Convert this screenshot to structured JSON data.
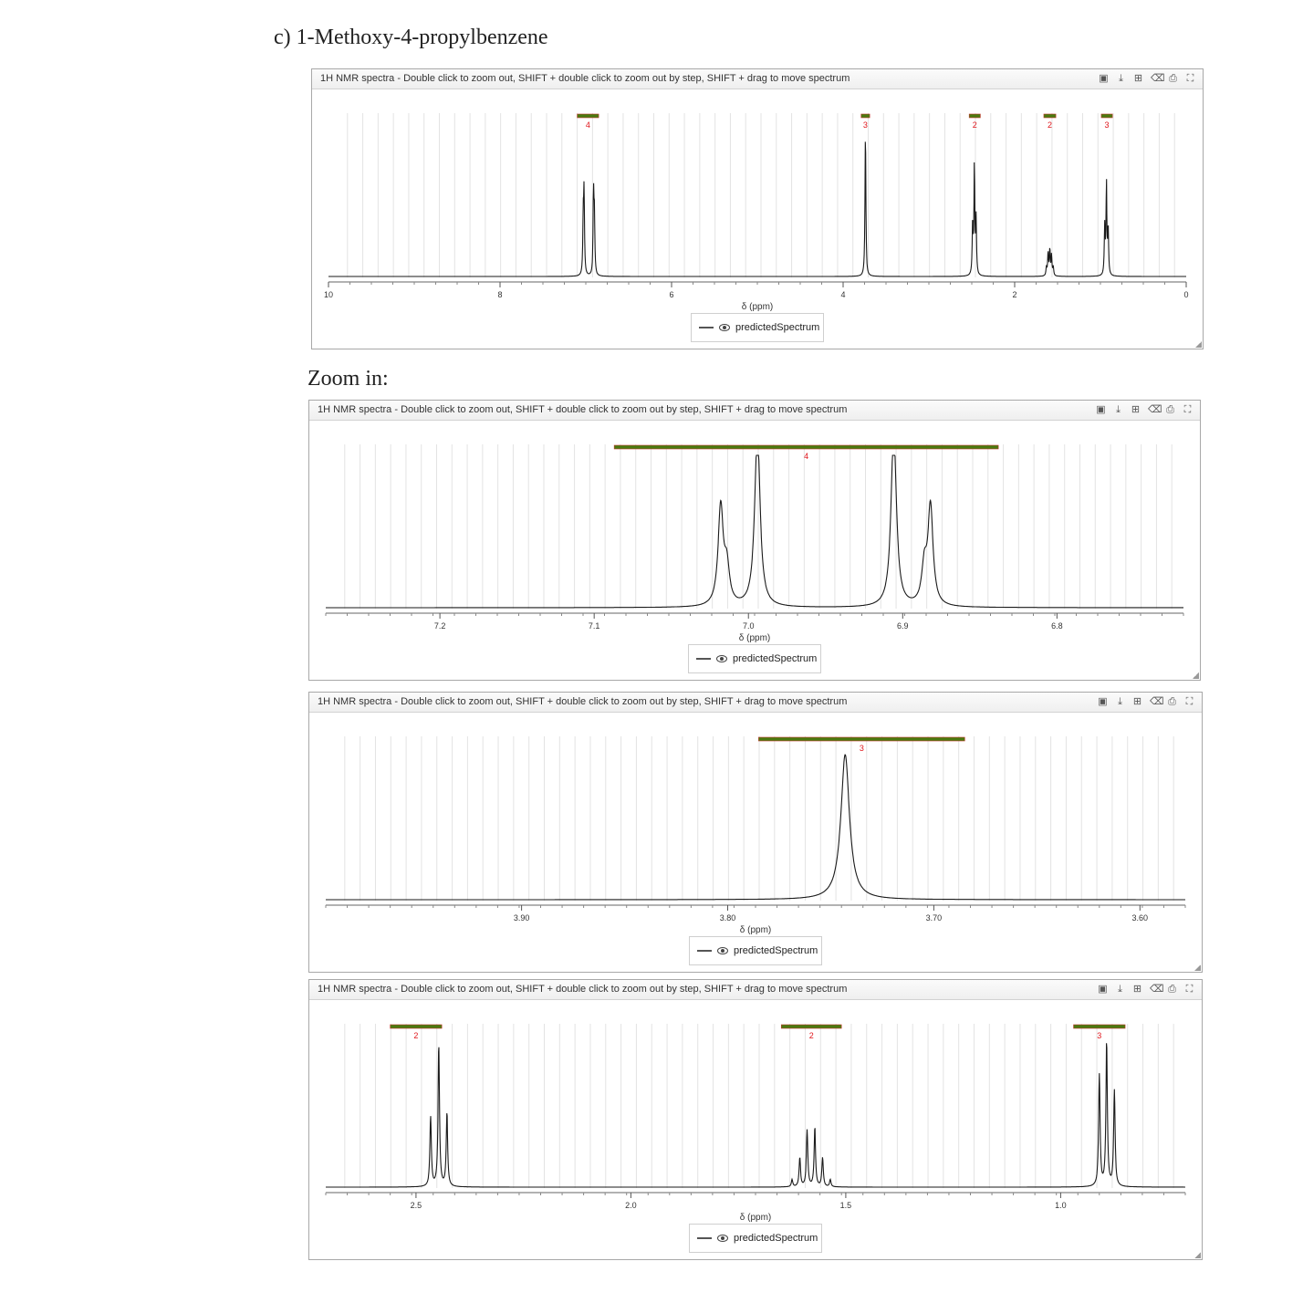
{
  "headings": {
    "title": "c)  1-Methoxy-4-propylbenzene",
    "zoom": "Zoom in:"
  },
  "toolbar_icons": [
    "export-image-icon",
    "download-icon",
    "table-icon",
    "eraser-icon",
    "print-icon",
    "fullscreen-icon"
  ],
  "colors": {
    "integral_bar": "#4a7a10",
    "integral_edge": "#c0392b",
    "integral_label": "#e0161c",
    "trace": "#1a1a1a",
    "grid": "#e3e3e3"
  },
  "chart_data": [
    {
      "type": "line",
      "title": "1H NMR spectra - Double click to zoom out, SHIFT + double click to zoom out by step, SHIFT + drag to move spectrum",
      "xlabel": "δ (ppm)",
      "xlim": [
        10,
        0
      ],
      "xticks": [
        "10",
        "8",
        "6",
        "4",
        "2",
        "0"
      ],
      "legend": "predictedSpectrum",
      "lw": 0.006,
      "peaks": [
        {
          "x": 7.03,
          "h": 0.38
        },
        {
          "x": 7.02,
          "h": 0.55
        },
        {
          "x": 6.91,
          "h": 0.55
        },
        {
          "x": 6.9,
          "h": 0.38
        },
        {
          "x": 3.74,
          "h": 1.0
        },
        {
          "x": 2.49,
          "h": 0.35
        },
        {
          "x": 2.47,
          "h": 0.74
        },
        {
          "x": 2.45,
          "h": 0.38
        },
        {
          "x": 1.63,
          "h": 0.06
        },
        {
          "x": 1.61,
          "h": 0.16
        },
        {
          "x": 1.59,
          "h": 0.18
        },
        {
          "x": 1.57,
          "h": 0.14
        },
        {
          "x": 1.55,
          "h": 0.06
        },
        {
          "x": 0.95,
          "h": 0.33
        },
        {
          "x": 0.93,
          "h": 0.63
        },
        {
          "x": 0.91,
          "h": 0.32
        }
      ],
      "integrals": [
        {
          "from": 7.1,
          "to": 6.85,
          "label": "4"
        },
        {
          "from": 3.79,
          "to": 3.69,
          "label": "3"
        },
        {
          "from": 2.53,
          "to": 2.4,
          "label": "2"
        },
        {
          "from": 1.66,
          "to": 1.52,
          "label": "2"
        },
        {
          "from": 0.99,
          "to": 0.86,
          "label": "3"
        }
      ]
    },
    {
      "type": "line",
      "title": "1H NMR spectra - Double click to zoom out, SHIFT + double click to zoom out by step, SHIFT + drag to move spectrum",
      "xlabel": "δ (ppm)",
      "xlim": [
        7.274,
        6.718
      ],
      "xticks": [
        "7.2",
        "7.1",
        "7.0",
        "6.9",
        "6.8"
      ],
      "legend": "predictedSpectrum",
      "lw": 0.002,
      "peaks": [
        {
          "x": 7.018,
          "h": 0.68
        },
        {
          "x": 7.014,
          "h": 0.25
        },
        {
          "x": 6.995,
          "h": 0.25
        },
        {
          "x": 6.994,
          "h": 1.0
        },
        {
          "x": 6.906,
          "h": 1.0
        },
        {
          "x": 6.905,
          "h": 0.25
        },
        {
          "x": 6.886,
          "h": 0.25
        },
        {
          "x": 6.882,
          "h": 0.68
        }
      ],
      "integrals": [
        {
          "from": 7.087,
          "to": 6.838,
          "label": "4"
        }
      ]
    },
    {
      "type": "line",
      "title": "1H NMR spectra - Double click to zoom out, SHIFT + double click to zoom out by step, SHIFT + drag to move spectrum",
      "xlabel": "δ (ppm)",
      "xlim": [
        3.995,
        3.578
      ],
      "xticks": [
        "3.90",
        "3.80",
        "3.70",
        "3.60"
      ],
      "legend": "predictedSpectrum",
      "lw": 0.0025,
      "peaks": [
        {
          "x": 3.743,
          "h": 1.0
        }
      ],
      "integrals": [
        {
          "from": 3.785,
          "to": 3.685,
          "label": "3"
        }
      ]
    },
    {
      "type": "line",
      "title": "1H NMR spectra - Double click to zoom out, SHIFT + double click to zoom out by step, SHIFT + drag to move spectrum",
      "xlabel": "δ (ppm)",
      "xlim": [
        2.71,
        0.71
      ],
      "xticks": [
        "2.5",
        "2.0",
        "1.5",
        "1.0"
      ],
      "legend": "predictedSpectrum",
      "lw": 0.002,
      "peaks": [
        {
          "x": 2.466,
          "h": 0.48
        },
        {
          "x": 2.447,
          "h": 0.98
        },
        {
          "x": 2.428,
          "h": 0.51
        },
        {
          "x": 1.625,
          "h": 0.05
        },
        {
          "x": 1.607,
          "h": 0.2
        },
        {
          "x": 1.59,
          "h": 0.39
        },
        {
          "x": 1.572,
          "h": 0.41
        },
        {
          "x": 1.554,
          "h": 0.2
        },
        {
          "x": 1.536,
          "h": 0.05
        },
        {
          "x": 0.91,
          "h": 0.77
        },
        {
          "x": 0.893,
          "h": 1.0
        },
        {
          "x": 0.875,
          "h": 0.66
        }
      ],
      "integrals": [
        {
          "from": 2.56,
          "to": 2.44,
          "label": "2"
        },
        {
          "from": 1.65,
          "to": 1.51,
          "label": "2"
        },
        {
          "from": 0.97,
          "to": 0.85,
          "label": "3"
        }
      ]
    }
  ]
}
